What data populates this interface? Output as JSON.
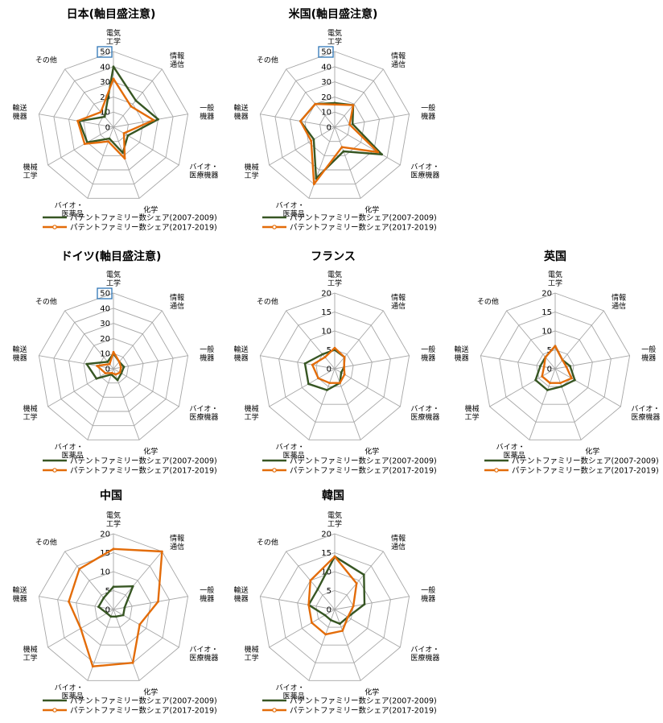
{
  "categories": [
    "電気\n工学",
    "情報\n通信",
    "一般\n機器",
    "バイオ・\n医療機器",
    "化学",
    "バイオ・\n医薬品",
    "機械\n工学",
    "輸送\n機器",
    "その他"
  ],
  "legend": [
    "パテントファミリー数シェア(2007-2009)",
    "パテントファミリー数シェア(2017-2019)"
  ],
  "colors": {
    "s2007": "#375623",
    "s2017": "#e36c09",
    "grid": "#a6a6a6",
    "highlight": "#2e75b6"
  },
  "chart_data": [
    {
      "type": "radar",
      "title": "日本(軸目盛注意)",
      "rmax": 50,
      "ticks": [
        "0",
        "10",
        "20",
        "30",
        "40",
        "50"
      ],
      "highlight_tick": "50",
      "series": [
        {
          "name": "パテントファミリー数シェア(2007-2009)",
          "values": [
            40,
            23,
            30,
            11,
            18,
            8,
            20,
            23,
            9
          ]
        },
        {
          "name": "パテントファミリー数シェア(2017-2019)",
          "values": [
            32,
            18,
            27,
            8,
            22,
            10,
            22,
            24,
            13
          ]
        }
      ]
    },
    {
      "type": "radar",
      "title": "米国(軸目盛注意)",
      "rmax": 50,
      "ticks": [
        "0",
        "10",
        "20",
        "30",
        "40",
        "50"
      ],
      "highlight_tick": "50",
      "series": [
        {
          "name": "パテントファミリー数シェア(2007-2009)",
          "values": [
            16,
            19,
            12,
            36,
            17,
            36,
            16,
            23,
            20
          ]
        },
        {
          "name": "パテントファミリー数シェア(2017-2019)",
          "values": [
            15,
            19,
            10,
            33,
            14,
            40,
            18,
            23,
            20
          ]
        }
      ]
    },
    {
      "type": "radar",
      "title": "ドイツ(軸目盛注意)",
      "rmax": 50,
      "ticks": [
        "0",
        "10",
        "20",
        "30",
        "40",
        "50"
      ],
      "highlight_tick": "50",
      "series": [
        {
          "name": "パテントファミリー数シェア(2007-2009)",
          "values": [
            10,
            6,
            7,
            6,
            8,
            4,
            13,
            18,
            6
          ]
        },
        {
          "name": "パテントファミリー数シェア(2017-2019)",
          "values": [
            11,
            6,
            5,
            5,
            4,
            3,
            6,
            11,
            4
          ]
        }
      ]
    },
    {
      "type": "radar",
      "title": "フランス",
      "rmax": 20,
      "ticks": [
        "0",
        "5",
        "10",
        "15",
        "20"
      ],
      "highlight_tick": "",
      "series": [
        {
          "name": "パテントファミリー数シェア(2007-2009)",
          "values": [
            5,
            4,
            2.5,
            2,
            4,
            6,
            8,
            8,
            5
          ]
        },
        {
          "name": "パテントファミリー数シェア(2017-2019)",
          "values": [
            5.5,
            4,
            2.5,
            3,
            4,
            4,
            5,
            6,
            4
          ]
        }
      ]
    },
    {
      "type": "radar",
      "title": "英国",
      "rmax": 20,
      "ticks": [
        "0",
        "5",
        "10",
        "15",
        "20"
      ],
      "highlight_tick": "",
      "series": [
        {
          "name": "パテントファミリー数シェア(2007-2009)",
          "values": [
            6,
            3,
            4,
            6,
            5,
            6,
            6,
            4,
            4
          ]
        },
        {
          "name": "パテントファミリー数シェア(2017-2019)",
          "values": [
            6,
            3,
            3,
            5,
            4,
            4,
            4,
            3,
            4
          ]
        }
      ]
    },
    {
      "type": "radar",
      "title": "中国",
      "rmax": 20,
      "ticks": [
        "0",
        "5",
        "10",
        "15",
        "20"
      ],
      "highlight_tick": "",
      "series": [
        {
          "name": "パテントファミリー数シェア(2007-2009)",
          "values": [
            6,
            8,
            3,
            3,
            2,
            2,
            2,
            4,
            4
          ]
        },
        {
          "name": "パテントファミリー数シェア(2017-2019)",
          "values": [
            16,
            20,
            12,
            8,
            15,
            16,
            10,
            12,
            14
          ]
        }
      ]
    },
    {
      "type": "radar",
      "title": "韓国",
      "rmax": 20,
      "ticks": [
        "0",
        "5",
        "10",
        "15",
        "20"
      ],
      "highlight_tick": "",
      "series": [
        {
          "name": "パテントファミリー数シェア(2007-2009)",
          "values": [
            14,
            12,
            8,
            4,
            4,
            3,
            3,
            7,
            7
          ]
        },
        {
          "name": "パテントファミリー数シェア(2017-2019)",
          "values": [
            14,
            9,
            5,
            4,
            6,
            7,
            7,
            7,
            10
          ]
        }
      ]
    }
  ]
}
